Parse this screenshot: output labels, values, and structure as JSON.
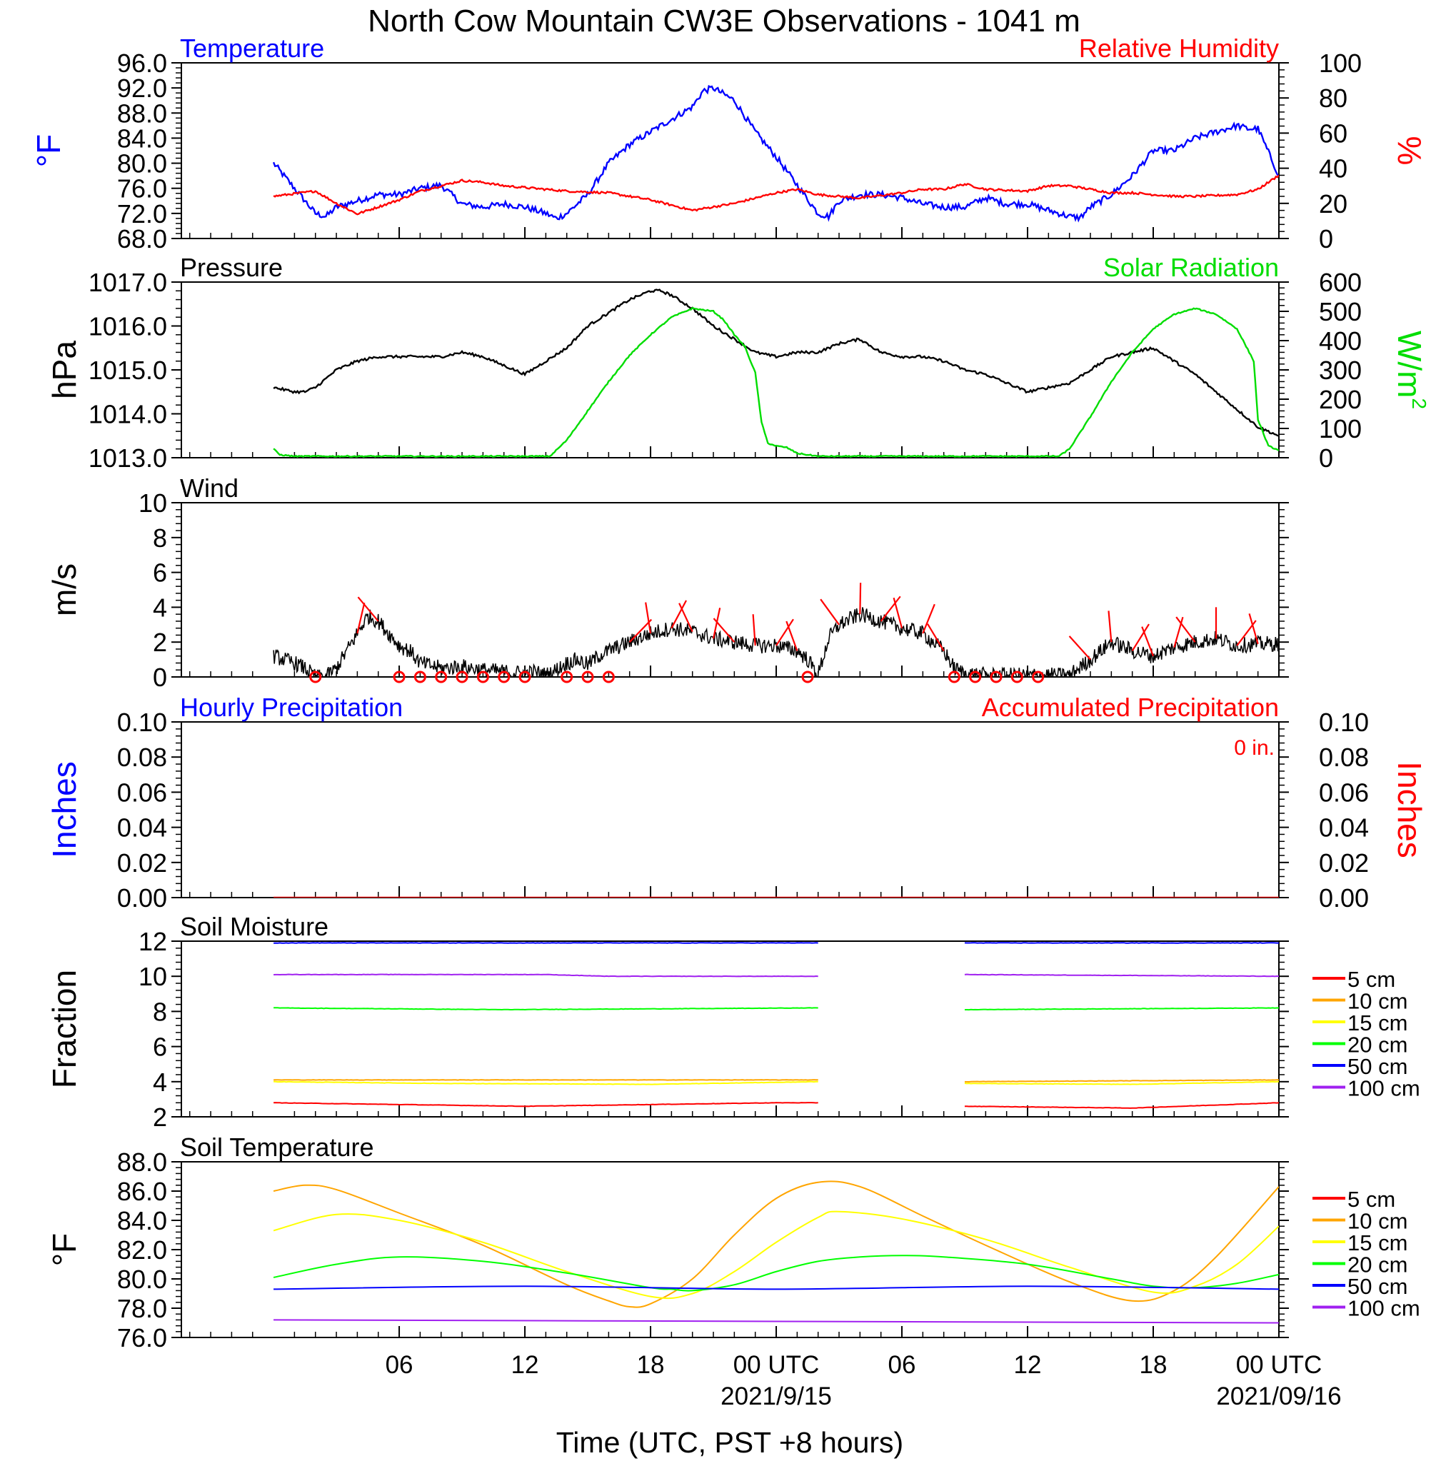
{
  "figure": {
    "title": "North Cow Mountain CW3E Observations - 1041 m",
    "xlabel": "Time (UTC, PST +8 hours)",
    "x_ticks": [
      {
        "hour": 6,
        "label": "06"
      },
      {
        "hour": 12,
        "label": "12"
      },
      {
        "hour": 18,
        "label": "18"
      },
      {
        "hour": 24,
        "label": "00 UTC",
        "date": "2021/9/15"
      },
      {
        "hour": 30,
        "label": "06"
      },
      {
        "hour": 36,
        "label": "12"
      },
      {
        "hour": 42,
        "label": "18"
      },
      {
        "hour": 48,
        "label": "00 UTC",
        "date": "2021/09/16"
      }
    ]
  },
  "chart_data": [
    {
      "id": "temp_rh",
      "type": "line",
      "title_left": "Temperature",
      "title_right": "Relative Humidity",
      "left_axis": {
        "label": "°F",
        "ylim": [
          68,
          96
        ],
        "ticks": [
          "96.0",
          "92.0",
          "88.0",
          "84.0",
          "80.0",
          "76.0",
          "72.0",
          "68.0"
        ],
        "color": "#0000ff"
      },
      "right_axis": {
        "label": "%",
        "ylim": [
          0,
          100
        ],
        "ticks": [
          "100",
          "80",
          "60",
          "40",
          "20",
          "0"
        ],
        "color": "#ff0000"
      },
      "series": [
        {
          "axis": "left",
          "color": "#0000ff",
          "hours": [
            0,
            1,
            2,
            2.5,
            3,
            4,
            5,
            6,
            7,
            8,
            8.5,
            9,
            10,
            11,
            12,
            13,
            13.5,
            14,
            15,
            16,
            17,
            18,
            19,
            20,
            20.5,
            21,
            22,
            23,
            24,
            25,
            26,
            26.5,
            27,
            28,
            29,
            30,
            31,
            32,
            33,
            34,
            35,
            36,
            37,
            38,
            38.5,
            39,
            40,
            41,
            42,
            43,
            44,
            45,
            46,
            46.5,
            47,
            48
          ],
          "values": [
            80,
            76,
            72,
            71.5,
            73,
            74,
            75,
            75,
            76,
            76.5,
            75,
            73.5,
            73,
            73.5,
            73,
            72,
            71.2,
            72,
            75,
            80,
            83,
            85,
            87,
            89,
            91.5,
            92,
            90,
            85,
            81,
            76.5,
            72,
            71.5,
            74,
            75,
            75,
            74.5,
            73.5,
            73,
            73,
            74.5,
            73.5,
            73.5,
            72.5,
            71.5,
            71.3,
            73,
            75,
            78,
            82,
            82,
            84,
            85,
            86,
            85.5,
            85.5,
            78
          ]
        },
        {
          "axis": "right",
          "color": "#ff0000",
          "hours": [
            0,
            2,
            3,
            4,
            6,
            7,
            8,
            9,
            10,
            11,
            12,
            13,
            14,
            16,
            18,
            20,
            22,
            24,
            25,
            26,
            28,
            30,
            31,
            32,
            33,
            34,
            36,
            37,
            38,
            40,
            41,
            42,
            43,
            44,
            46,
            47,
            48
          ],
          "values": [
            24,
            27,
            20,
            14,
            22,
            27,
            30,
            33,
            32,
            30,
            29,
            28,
            27,
            26,
            22,
            16,
            20,
            26,
            28,
            25,
            23,
            26,
            28,
            28,
            31,
            28,
            27,
            30,
            30,
            26,
            26,
            25,
            24,
            24,
            25,
            28,
            36
          ]
        }
      ]
    },
    {
      "id": "pressure_solar",
      "type": "line",
      "title_left": "Pressure",
      "title_right": "Solar Radiation",
      "left_axis": {
        "label": "hPa",
        "ylim": [
          1013,
          1017
        ],
        "ticks": [
          "1017.0",
          "1016.0",
          "1015.0",
          "1014.0",
          "1013.0"
        ],
        "color": "#000000"
      },
      "right_axis": {
        "label": "W/m",
        "label_sup": "2",
        "ylim": [
          0,
          600
        ],
        "ticks": [
          "600",
          "500",
          "400",
          "300",
          "200",
          "100",
          "0"
        ],
        "color": "#00dd00"
      },
      "series": [
        {
          "axis": "left",
          "color": "#000000",
          "hours": [
            0,
            1,
            1.5,
            2,
            3,
            4,
            5,
            6,
            8,
            9,
            10,
            11,
            12,
            13,
            14,
            15,
            16,
            17,
            18,
            18.5,
            19,
            20,
            21,
            22,
            23,
            24,
            25,
            26,
            27,
            28,
            29,
            30,
            31,
            32,
            33,
            34,
            35,
            36,
            37,
            38,
            39,
            40,
            41,
            42,
            43,
            44,
            45,
            46,
            47,
            48
          ],
          "values": [
            1014.6,
            1014.5,
            1014.5,
            1014.6,
            1015.0,
            1015.2,
            1015.3,
            1015.3,
            1015.3,
            1015.4,
            1015.3,
            1015.1,
            1014.9,
            1015.2,
            1015.5,
            1016.0,
            1016.3,
            1016.6,
            1016.8,
            1016.8,
            1016.7,
            1016.4,
            1016.0,
            1015.7,
            1015.4,
            1015.3,
            1015.4,
            1015.4,
            1015.6,
            1015.7,
            1015.4,
            1015.3,
            1015.3,
            1015.2,
            1015.0,
            1014.9,
            1014.7,
            1014.5,
            1014.6,
            1014.7,
            1015.0,
            1015.3,
            1015.4,
            1015.5,
            1015.2,
            1014.9,
            1014.5,
            1014.1,
            1013.7,
            1013.5
          ]
        },
        {
          "axis": "right",
          "color": "#00dd00",
          "hours": [
            0,
            0.3,
            1,
            13.2,
            14,
            15,
            16,
            17,
            18,
            19,
            20,
            21,
            21.5,
            22,
            22.5,
            23,
            23.3,
            23.6,
            24,
            24.5,
            25,
            26,
            37.5,
            38,
            39,
            40,
            41,
            42,
            43,
            44,
            45,
            46,
            46.8,
            47,
            47.5,
            48
          ],
          "values": [
            30,
            10,
            5,
            5,
            60,
            160,
            260,
            350,
            420,
            480,
            510,
            500,
            470,
            420,
            380,
            290,
            120,
            50,
            40,
            35,
            15,
            5,
            5,
            30,
            140,
            260,
            360,
            440,
            490,
            510,
            490,
            440,
            330,
            130,
            40,
            25
          ]
        }
      ]
    },
    {
      "id": "wind",
      "type": "line",
      "title_left": "Wind",
      "left_axis": {
        "label": "m/s",
        "ylim": [
          0,
          10
        ],
        "ticks": [
          "10",
          "8",
          "6",
          "4",
          "2",
          "0"
        ],
        "color": "#000000"
      },
      "series": [
        {
          "axis": "left",
          "color": "#000000",
          "hours": [
            0,
            1,
            1.5,
            2,
            2.5,
            3,
            3.5,
            4,
            4.5,
            5,
            5.5,
            6,
            6.5,
            7,
            8,
            9,
            10,
            11,
            12,
            12.5,
            13,
            13.5,
            14,
            14.5,
            15,
            15.5,
            16,
            17,
            18,
            19,
            20,
            21,
            22,
            23,
            24,
            25,
            25.5,
            26,
            26.5,
            27,
            28,
            29,
            30,
            31,
            32,
            32.5,
            33,
            34,
            35,
            36,
            37,
            38,
            39,
            40,
            41,
            42,
            43,
            44,
            45,
            46,
            47,
            48
          ],
          "values": [
            1.2,
            0.8,
            0.5,
            0,
            0,
            0.5,
            1.5,
            2.5,
            3.5,
            3.2,
            2.5,
            1.8,
            1.5,
            0.8,
            0.5,
            0.6,
            0.4,
            0.3,
            0.2,
            0.3,
            0.1,
            0.4,
            0.8,
            1.0,
            0.7,
            1.2,
            1.5,
            2,
            2.5,
            2.8,
            2.6,
            2.2,
            2,
            1.8,
            1.8,
            1.5,
            1.0,
            0.1,
            2.2,
            3.0,
            3.6,
            3.2,
            2.8,
            2.5,
            1.5,
            0.5,
            0.2,
            0.1,
            0.1,
            0.1,
            0.1,
            0.1,
            1.0,
            2.0,
            1.5,
            1.2,
            1.7,
            2.0,
            2.2,
            1.8,
            1.9,
            1.9
          ]
        }
      ],
      "calm_markers_hours": [
        2,
        6,
        7,
        8,
        9,
        10,
        11,
        12,
        14,
        15,
        16,
        25.5,
        32.5,
        33.5,
        34.5,
        35.5,
        36.5
      ]
    },
    {
      "id": "precip",
      "type": "line",
      "title_left": "Hourly Precipitation",
      "title_right": "Accumulated Precipitation",
      "annotation": "0 in.",
      "left_axis": {
        "label": "Inches",
        "ylim": [
          0,
          0.1
        ],
        "ticks": [
          "0.10",
          "0.08",
          "0.06",
          "0.04",
          "0.02",
          "0.00"
        ],
        "color": "#0000ff"
      },
      "right_axis": {
        "label": "Inches",
        "ylim": [
          0,
          0.1
        ],
        "ticks": [
          "0.10",
          "0.08",
          "0.06",
          "0.04",
          "0.02",
          "0.00"
        ],
        "color": "#ff0000"
      },
      "series": [
        {
          "axis": "right",
          "color": "#ff0000",
          "hours": [
            0,
            48
          ],
          "values": [
            0,
            0
          ]
        }
      ]
    },
    {
      "id": "soil_moisture",
      "type": "line",
      "title_left": "Soil Moisture",
      "left_axis": {
        "label": "Fraction",
        "ylim": [
          2,
          12
        ],
        "ticks": [
          "12",
          "10",
          "8",
          "6",
          "4",
          "2"
        ],
        "color": "#000000"
      },
      "series": [
        {
          "name": "5 cm",
          "color": "#ff0000",
          "segments": [
            {
              "hours": [
                0,
                12,
                24,
                26
              ],
              "values": [
                2.8,
                2.6,
                2.8,
                2.8
              ]
            },
            {
              "hours": [
                33,
                41,
                48
              ],
              "values": [
                2.6,
                2.5,
                2.8
              ]
            }
          ]
        },
        {
          "name": "10 cm",
          "color": "#ffa500",
          "segments": [
            {
              "hours": [
                0,
                26
              ],
              "values": [
                4.1,
                4.1
              ]
            },
            {
              "hours": [
                33,
                48
              ],
              "values": [
                4.0,
                4.1
              ]
            }
          ]
        },
        {
          "name": "15 cm",
          "color": "#ffff00",
          "segments": [
            {
              "hours": [
                0,
                8,
                18,
                26
              ],
              "values": [
                4.0,
                3.9,
                3.85,
                4.0
              ]
            },
            {
              "hours": [
                33,
                41,
                48
              ],
              "values": [
                3.9,
                3.85,
                4.0
              ]
            }
          ]
        },
        {
          "name": "20 cm",
          "color": "#00ff00",
          "segments": [
            {
              "hours": [
                0,
                11,
                26
              ],
              "values": [
                8.2,
                8.1,
                8.2
              ]
            },
            {
              "hours": [
                33,
                48
              ],
              "values": [
                8.1,
                8.2
              ]
            }
          ]
        },
        {
          "name": "50 cm",
          "color": "#0000ff",
          "segments": [
            {
              "hours": [
                0,
                26
              ],
              "values": [
                11.9,
                11.9
              ]
            },
            {
              "hours": [
                33,
                48
              ],
              "values": [
                11.9,
                11.9
              ]
            }
          ]
        },
        {
          "name": "100 cm",
          "color": "#a020f0",
          "segments": [
            {
              "hours": [
                0,
                13,
                16,
                26
              ],
              "values": [
                10.1,
                10.1,
                10.0,
                10.0
              ]
            },
            {
              "hours": [
                33,
                48
              ],
              "values": [
                10.1,
                10.0
              ]
            }
          ]
        }
      ]
    },
    {
      "id": "soil_temperature",
      "type": "line",
      "title_left": "Soil Temperature",
      "left_axis": {
        "label": "°F",
        "ylim": [
          76,
          88
        ],
        "ticks": [
          "88.0",
          "86.0",
          "84.0",
          "82.0",
          "80.0",
          "78.0",
          "76.0"
        ],
        "color": "#000000"
      },
      "series": [
        {
          "name": "5 cm",
          "color": "#ff0000",
          "hours": [],
          "values": []
        },
        {
          "name": "10 cm",
          "color": "#ffa500",
          "hours": [
            0,
            1.5,
            3,
            6,
            10,
            14,
            16,
            17,
            18,
            20,
            22,
            24,
            26,
            28,
            31,
            34,
            38,
            41,
            43,
            45,
            48
          ],
          "values": [
            86,
            86.4,
            86.1,
            84.5,
            82.3,
            79.6,
            78.5,
            78.1,
            78.3,
            80.0,
            83.0,
            85.5,
            86.6,
            86.3,
            84.3,
            82.3,
            79.8,
            78.5,
            79.2,
            81.5,
            86.3
          ]
        },
        {
          "name": "15 cm",
          "color": "#ffff00",
          "hours": [
            0,
            3,
            6,
            10,
            14,
            18,
            20,
            22,
            24,
            26,
            27,
            30,
            34,
            38,
            42,
            44,
            46,
            48
          ],
          "values": [
            83.3,
            84.4,
            84.0,
            82.5,
            80.5,
            78.8,
            79.0,
            80.5,
            82.5,
            84.2,
            84.6,
            84.1,
            82.7,
            80.8,
            79.1,
            79.5,
            81.0,
            83.6
          ]
        },
        {
          "name": "20 cm",
          "color": "#00ff00",
          "hours": [
            0,
            3,
            6,
            10,
            14,
            18,
            19,
            20,
            22,
            24,
            26,
            28,
            30,
            32,
            36,
            40,
            42,
            44,
            46,
            48
          ],
          "values": [
            80.1,
            81.0,
            81.5,
            81.2,
            80.4,
            79.4,
            79.3,
            79.2,
            79.6,
            80.5,
            81.2,
            81.5,
            81.6,
            81.5,
            81.0,
            80.0,
            79.5,
            79.4,
            79.7,
            80.3
          ]
        },
        {
          "name": "50 cm",
          "color": "#0000ff",
          "hours": [
            0,
            12,
            24,
            36,
            48
          ],
          "values": [
            79.3,
            79.5,
            79.3,
            79.5,
            79.3
          ]
        },
        {
          "name": "100 cm",
          "color": "#a020f0",
          "hours": [
            0,
            24,
            48
          ],
          "values": [
            77.2,
            77.1,
            77.0
          ]
        }
      ]
    }
  ]
}
